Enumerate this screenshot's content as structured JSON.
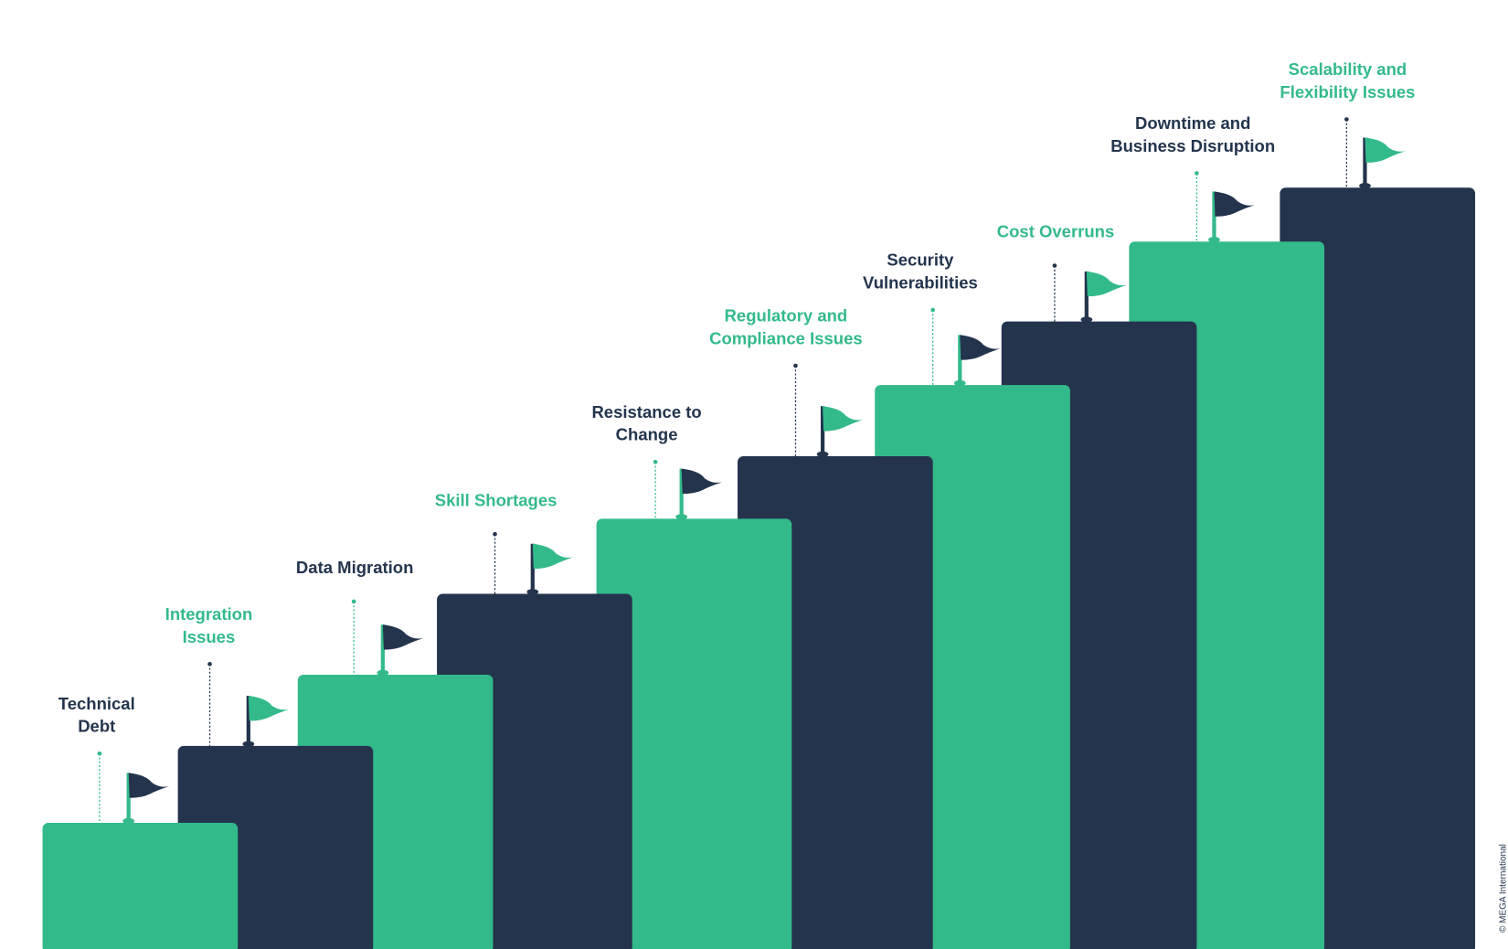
{
  "steps": [
    {
      "label": [
        "Technical",
        "Debt"
      ]
    },
    {
      "label": [
        "Integration",
        "Issues"
      ]
    },
    {
      "label": [
        "Data Migration"
      ]
    },
    {
      "label": [
        "Skill Shortages"
      ]
    },
    {
      "label": [
        "Resistance to",
        "Change"
      ]
    },
    {
      "label": [
        "Regulatory and",
        "Compliance Issues"
      ]
    },
    {
      "label": [
        "Security",
        "Vulnerabilities"
      ]
    },
    {
      "label": [
        "Cost Overruns"
      ]
    },
    {
      "label": [
        "Downtime and",
        "Business Disruption"
      ]
    },
    {
      "label": [
        "Scalability and",
        "Flexibility Issues"
      ]
    }
  ],
  "credit": "© MEGA International"
}
